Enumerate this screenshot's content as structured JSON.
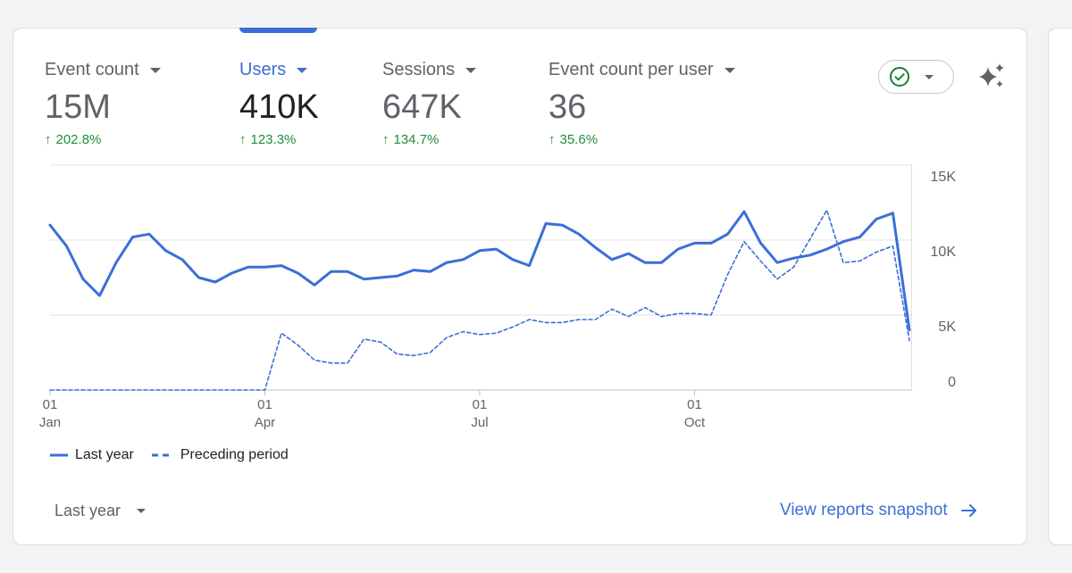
{
  "metrics": [
    {
      "label": "Event count",
      "value": "15M",
      "delta": "202.8%",
      "active": false
    },
    {
      "label": "Users",
      "value": "410K",
      "delta": "123.3%",
      "active": true
    },
    {
      "label": "Sessions",
      "value": "647K",
      "delta": "134.7%",
      "active": false
    },
    {
      "label": "Event count per user",
      "value": "36",
      "delta": "35.6%",
      "active": false
    }
  ],
  "colors": {
    "accent": "#3b6fd6",
    "positive": "#1e8e3e",
    "status_check": "#188038"
  },
  "icons": {
    "delta_arrow": "arrow-up-icon",
    "status": "check-circle-icon",
    "insights": "sparkle-icon",
    "link": "arrow-right-icon"
  },
  "chart_data": {
    "type": "line",
    "y_tick_labels": [
      "15K",
      "10K",
      "5K",
      "0"
    ],
    "ylim": [
      0,
      15000
    ],
    "x_tick_labels": [
      {
        "day": "01",
        "month": "Jan"
      },
      {
        "day": "01",
        "month": "Apr"
      },
      {
        "day": "01",
        "month": "Jul"
      },
      {
        "day": "01",
        "month": "Oct"
      }
    ],
    "legend_position": "bottom-left",
    "grid": true,
    "series": [
      {
        "name": "Last year",
        "style": "solid",
        "values": [
          11000,
          9600,
          7400,
          6300,
          8500,
          10200,
          10400,
          9300,
          8700,
          7500,
          7200,
          7800,
          8200,
          8200,
          8300,
          7800,
          7000,
          7900,
          7900,
          7400,
          7500,
          7600,
          8000,
          7900,
          8500,
          8700,
          9300,
          9400,
          8700,
          8300,
          11100,
          11000,
          10400,
          9500,
          8700,
          9100,
          8500,
          8500,
          9400,
          9800,
          9800,
          10400,
          11900,
          9800,
          8500,
          8800,
          9000,
          9400,
          9900,
          10200,
          11400,
          11800,
          4000
        ]
      },
      {
        "name": "Preceding period",
        "style": "dashed",
        "values": [
          0,
          0,
          0,
          0,
          0,
          0,
          0,
          0,
          0,
          0,
          0,
          0,
          0,
          0,
          3800,
          3000,
          2000,
          1800,
          1800,
          3400,
          3200,
          2400,
          2300,
          2500,
          3500,
          3900,
          3700,
          3800,
          4200,
          4700,
          4500,
          4500,
          4700,
          4700,
          5400,
          4900,
          5500,
          4900,
          5100,
          5100,
          5000,
          7700,
          9900,
          8600,
          7400,
          8200,
          10100,
          12000,
          8500,
          8600,
          9200,
          9600,
          3300
        ]
      }
    ]
  },
  "range_select": {
    "label": "Last year"
  },
  "view_link": {
    "label": "View reports snapshot"
  }
}
